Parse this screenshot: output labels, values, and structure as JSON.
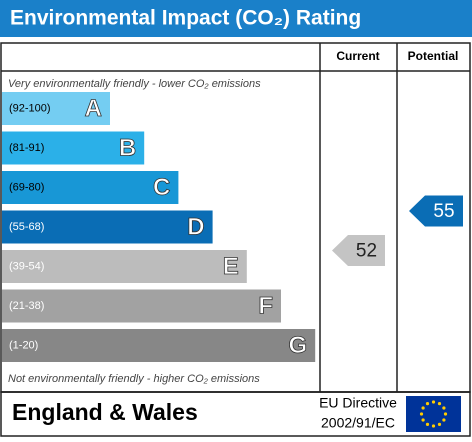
{
  "header": {
    "title": "Environmental Impact (CO₂) Rating"
  },
  "columns": {
    "current": "Current",
    "potential": "Potential"
  },
  "top_note": "Very environmentally friendly - lower CO₂ emissions",
  "bottom_note": "Not environmentally friendly - higher CO₂ emissions",
  "bands": [
    {
      "range": "(92-100)",
      "letter": "A",
      "color": "#74cdf2"
    },
    {
      "range": "(81-91)",
      "letter": "B",
      "color": "#2bb0e8"
    },
    {
      "range": "(69-80)",
      "letter": "C",
      "color": "#1897d6"
    },
    {
      "range": "(55-68)",
      "letter": "D",
      "color": "#0a6db5"
    },
    {
      "range": "(39-54)",
      "letter": "E",
      "color": "#bcbcbc"
    },
    {
      "range": "(21-38)",
      "letter": "F",
      "color": "#a2a2a2"
    },
    {
      "range": "(1-20)",
      "letter": "G",
      "color": "#878787"
    }
  ],
  "current": {
    "value": 52,
    "color": "#c4c4c4"
  },
  "potential": {
    "value": 55,
    "color": "#0a6db5"
  },
  "footer": {
    "region": "England & Wales",
    "directive_line1": "EU Directive",
    "directive_line2": "2002/91/EC"
  }
}
